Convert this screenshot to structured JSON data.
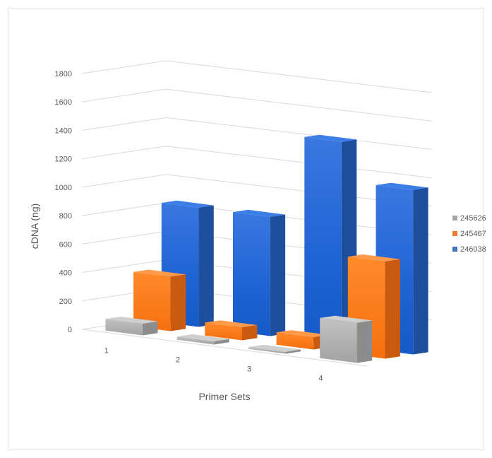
{
  "chart_data": {
    "type": "bar",
    "variant": "3d-column",
    "title": "",
    "xlabel": "Primer Sets",
    "ylabel": "cDNA (ng)",
    "categories": [
      "1",
      "2",
      "3",
      "4"
    ],
    "ylim": [
      0,
      1800
    ],
    "yticks": [
      "0",
      "200",
      "400",
      "600",
      "800",
      "1000",
      "1200",
      "1400",
      "1600",
      "1800"
    ],
    "grid": true,
    "legend_position": "right",
    "series": [
      {
        "name": "245626",
        "color": "#a5a5a5",
        "values": [
          90,
          25,
          15,
          310
        ]
      },
      {
        "name": "245467",
        "color": "#ed7d31",
        "values": [
          420,
          100,
          95,
          750
        ]
      },
      {
        "name": "246038",
        "color": "#4472c4",
        "values": [
          920,
          920,
          1570,
          1270
        ]
      }
    ]
  }
}
